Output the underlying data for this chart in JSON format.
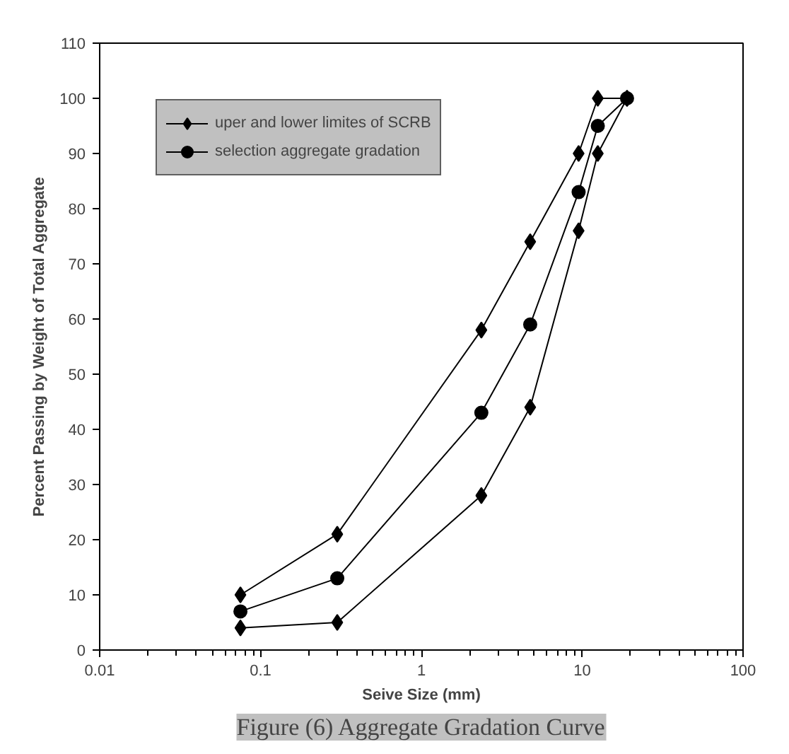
{
  "chart_data": {
    "type": "line",
    "xlabel": "Seive Size (mm)",
    "ylabel": "Percent Passing by Weight of Total Aggregate",
    "log": "x",
    "xlim": [
      0.01,
      100
    ],
    "xticks": [
      0.01,
      0.1,
      1,
      10,
      100
    ],
    "ylim": [
      0,
      110
    ],
    "yticks": [
      0,
      10,
      20,
      30,
      40,
      50,
      60,
      70,
      80,
      90,
      100,
      110
    ],
    "grid": false,
    "legend": "top left",
    "series": [
      {
        "name": "uper and lower limites of SCRB",
        "color": "#000000",
        "marker": "diamond",
        "x": [
          0.075,
          0.3,
          2.36,
          4.75,
          9.5,
          12.5,
          19
        ],
        "values": [
          10,
          21,
          58,
          74,
          90,
          100,
          100
        ]
      },
      {
        "color": "#000000",
        "marker": "diamond",
        "x": [
          0.075,
          0.3,
          2.36,
          4.75,
          9.5,
          12.5,
          19
        ],
        "values": [
          4,
          5,
          28,
          44,
          76,
          90,
          100
        ]
      },
      {
        "name": "selection aggregate gradation",
        "color": "#000000",
        "marker": "circle",
        "x": [
          0.075,
          0.3,
          2.36,
          4.75,
          9.5,
          12.5,
          19
        ],
        "values": [
          7,
          13,
          43,
          59,
          83,
          95,
          100
        ]
      }
    ],
    "annotations": [
      "Figure (6) Aggregate Gradation Curve"
    ]
  }
}
